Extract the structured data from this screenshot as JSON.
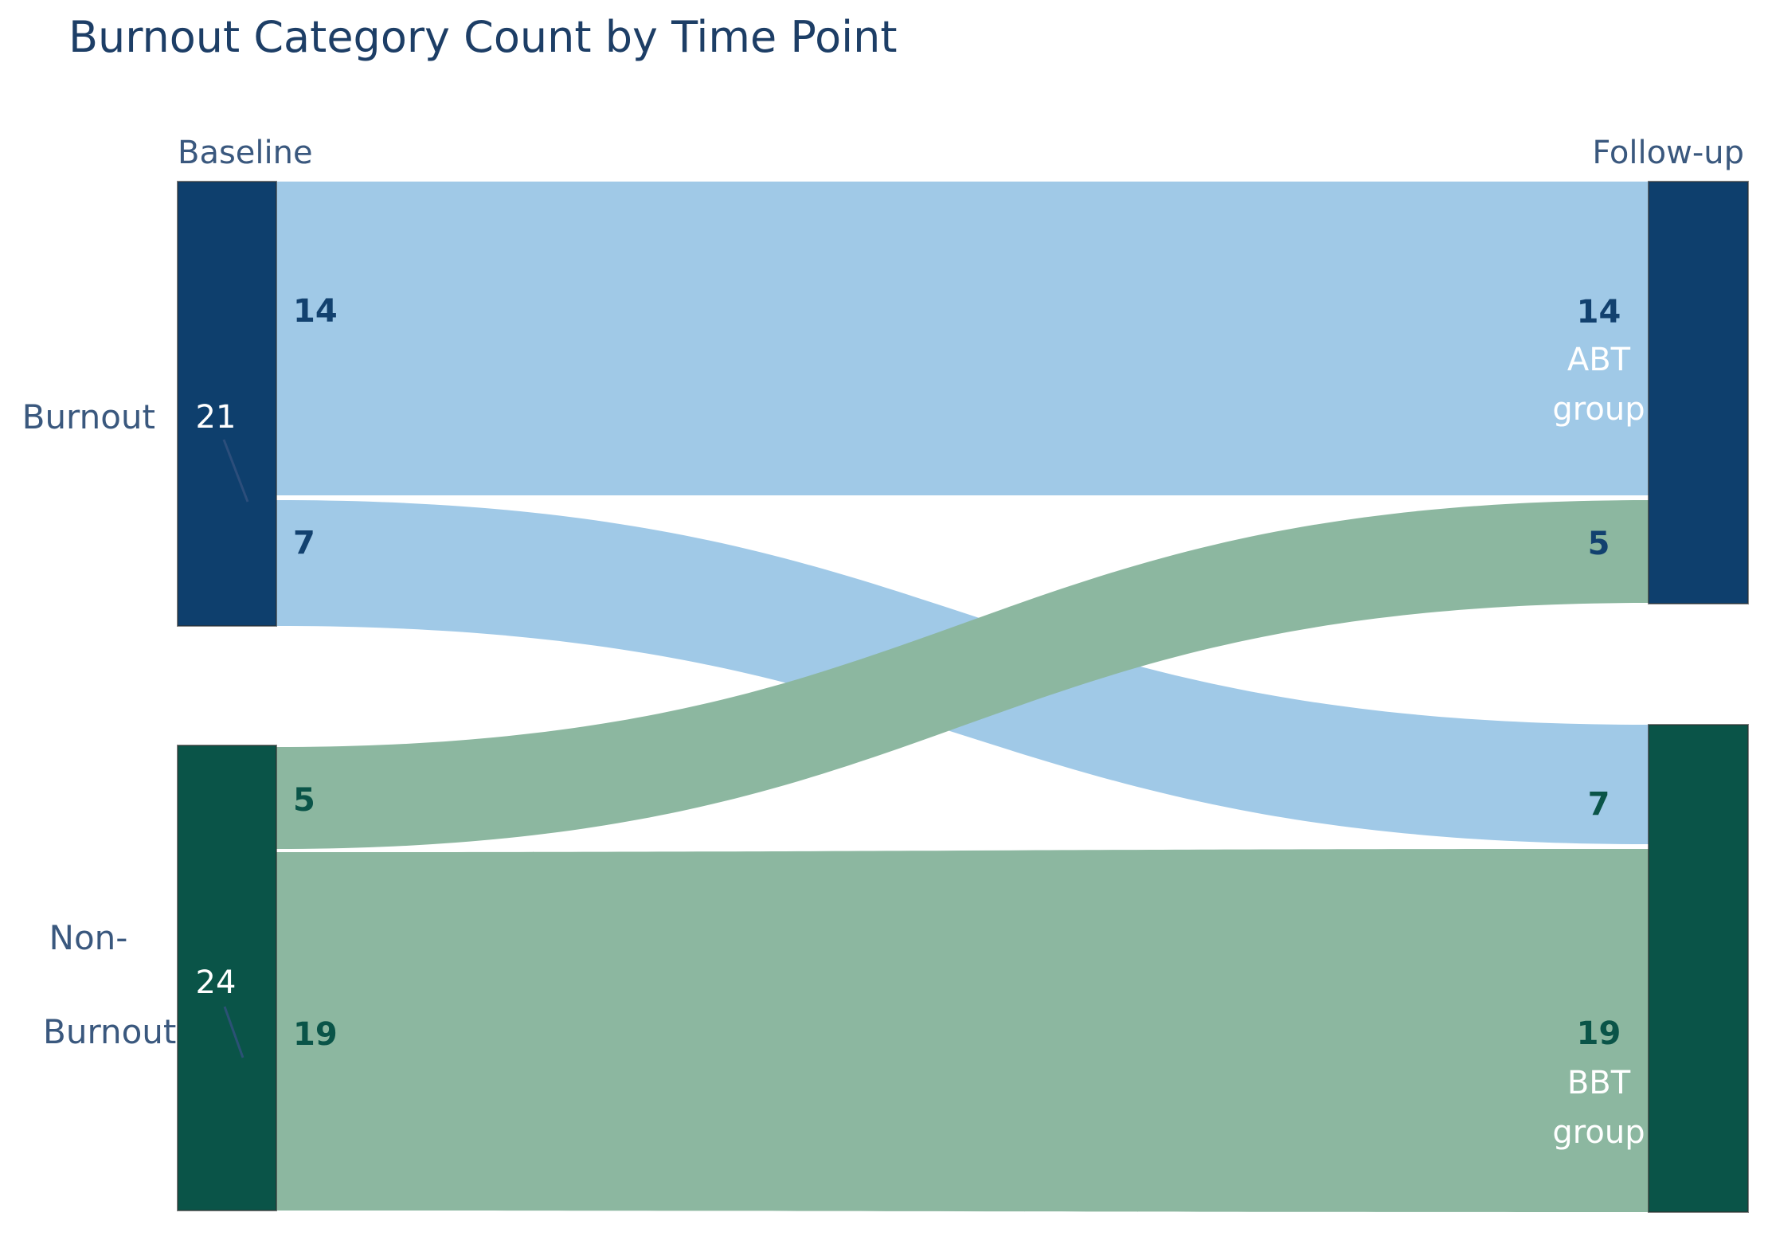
{
  "title": "Burnout Category Count by Time Point",
  "column_headers": {
    "left": "Baseline",
    "right": "Follow-up"
  },
  "chart_data": {
    "type": "sankey",
    "title": "Burnout Category Count by Time Point",
    "time_points": [
      "Baseline",
      "Follow-up"
    ],
    "nodes": [
      {
        "id": "burnout",
        "column": "Baseline",
        "label": "Burnout",
        "label_lines": [
          "Burnout"
        ],
        "value": 21,
        "color": "#0e3f6d"
      },
      {
        "id": "non-burnout",
        "column": "Baseline",
        "label": "Non-Burnout",
        "label_lines": [
          "Non-",
          "Burnout"
        ],
        "value": 24,
        "color": "#0a5448"
      },
      {
        "id": "abt-group",
        "column": "Follow-up",
        "label": "ABT group",
        "label_lines": [
          "ABT",
          "group"
        ],
        "color": "#0e3f6d"
      },
      {
        "id": "bbt-group",
        "column": "Follow-up",
        "label": "BBT group",
        "label_lines": [
          "BBT",
          "group"
        ],
        "color": "#0a5448"
      }
    ],
    "links": [
      {
        "source": "Burnout",
        "target": "ABT group",
        "value": 14,
        "color": "#a0c9e7"
      },
      {
        "source": "Burnout",
        "target": "BBT group",
        "value": 7,
        "color": "#a0c9e7"
      },
      {
        "source": "Non-Burnout",
        "target": "ABT group",
        "value": 5,
        "color": "#8cb7a0"
      },
      {
        "source": "Non-Burnout",
        "target": "BBT group",
        "value": 19,
        "color": "#8cb7a0"
      }
    ],
    "layout_hints": {
      "legend": false,
      "grid": false,
      "background": "#ffffff",
      "link_draw_order": "green links drawn over blue links at the crossing",
      "left_flow_labels": "dark, left of flow start",
      "right_flow_labels": "centered left of node; group names in white"
    }
  },
  "colors": {
    "navy_node": "#0e3f6d",
    "teal_node": "#0a5448",
    "blue_flow": "#a0c9e7",
    "green_flow": "#8cb7a0",
    "title_text": "#1d3e66",
    "label_text": "#3a587e",
    "flow_label_navy": "#12416f",
    "flow_label_teal": "#0a5448",
    "node_value_text": "#ffffff",
    "node_border": "#2e2e2e",
    "leader_line": "#31517e"
  }
}
